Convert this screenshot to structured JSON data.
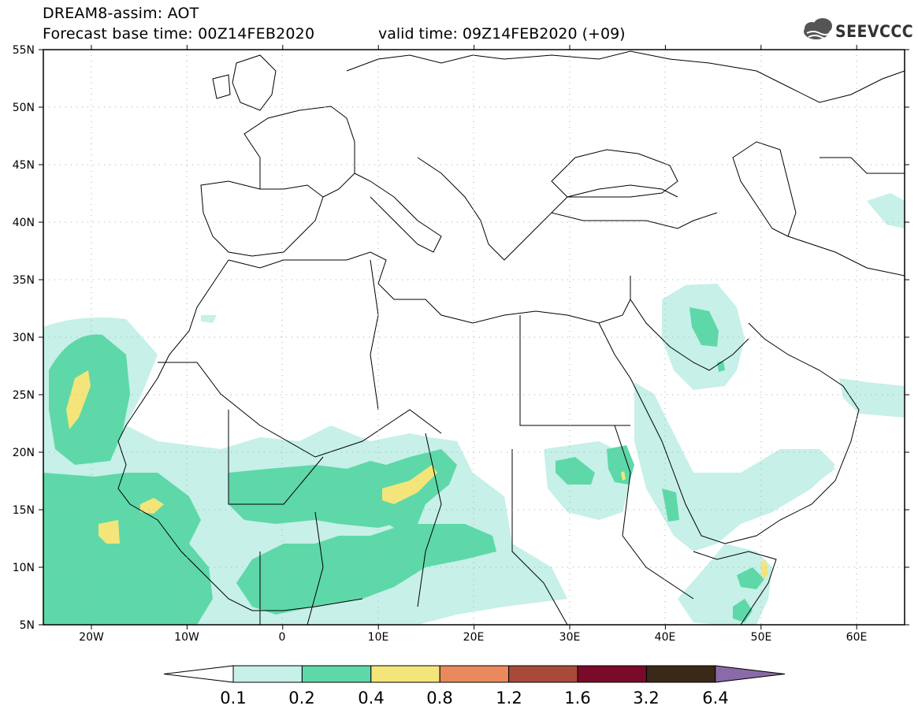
{
  "title": {
    "line1": "DREAM8-assim: AOT",
    "line2": "Forecast base time: 00Z14FEB2020",
    "valid": "valid time: 09Z14FEB2020 (+09)"
  },
  "logo": {
    "text": "SEEVCCC",
    "icon": "cloud-icon"
  },
  "map": {
    "lat_labels": [
      "55N",
      "50N",
      "45N",
      "40N",
      "35N",
      "30N",
      "25N",
      "20N",
      "15N",
      "10N",
      "5N"
    ],
    "lon_labels": [
      "20W",
      "10W",
      "0",
      "10E",
      "20E",
      "30E",
      "40E",
      "50E",
      "60E"
    ]
  },
  "legend": {
    "thresholds": [
      "0.1",
      "0.2",
      "0.4",
      "0.8",
      "1.2",
      "1.6",
      "3.2",
      "6.4"
    ],
    "colors": [
      "#ffffff",
      "#c6f0e8",
      "#5ed8a8",
      "#f4e57a",
      "#e8895e",
      "#a84a3a",
      "#7a0a2a",
      "#3a2818",
      "#8a6aa8"
    ]
  }
}
